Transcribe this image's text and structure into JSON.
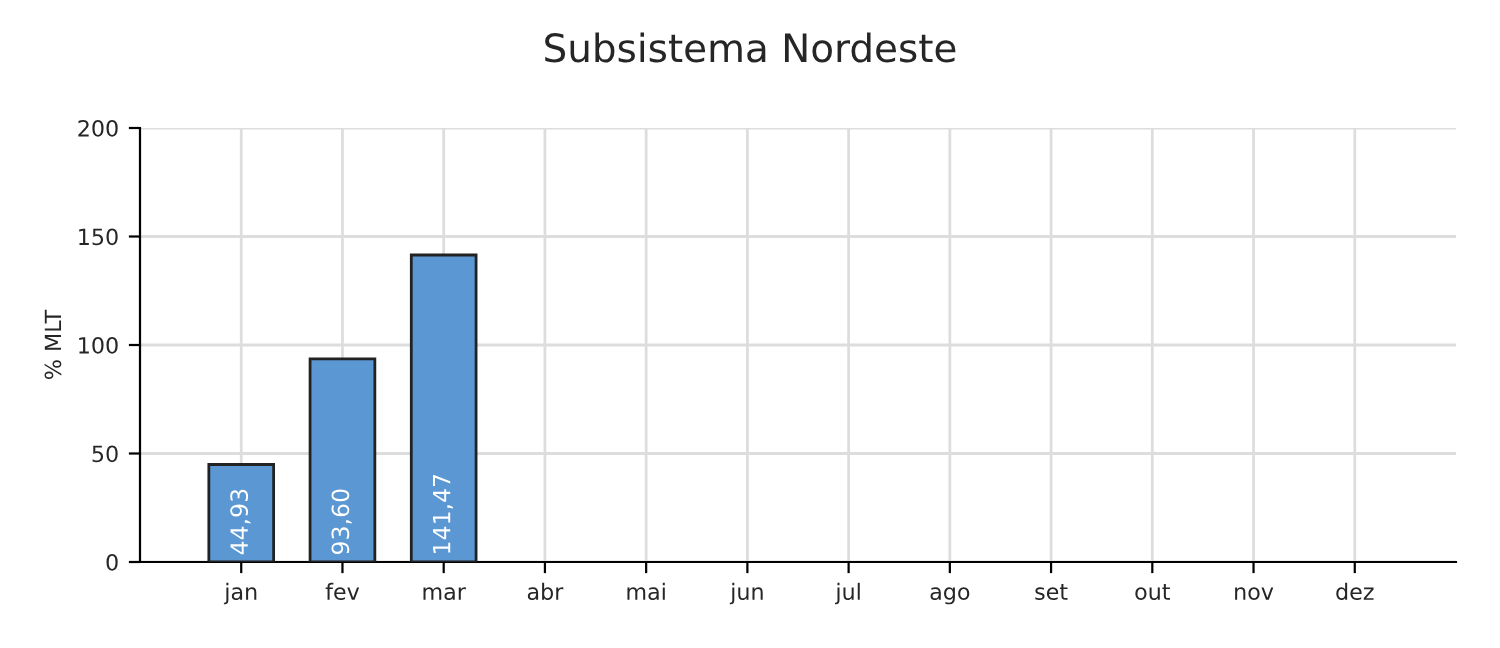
{
  "chart_data": {
    "type": "bar",
    "title": "Subsistema Nordeste",
    "ylabel": "% MLT",
    "categories": [
      "jan",
      "fev",
      "mar",
      "abr",
      "mai",
      "jun",
      "jul",
      "ago",
      "set",
      "out",
      "nov",
      "dez"
    ],
    "values": [
      44.93,
      93.6,
      141.47,
      null,
      null,
      null,
      null,
      null,
      null,
      null,
      null,
      null
    ],
    "value_labels": [
      "44,93",
      "93,60",
      "141,47",
      null,
      null,
      null,
      null,
      null,
      null,
      null,
      null,
      null
    ],
    "color": "#5b97d3",
    "ylim": [
      0,
      200
    ],
    "yticks": [
      0,
      50,
      100,
      150,
      200
    ],
    "grid": true,
    "legend": false
  }
}
